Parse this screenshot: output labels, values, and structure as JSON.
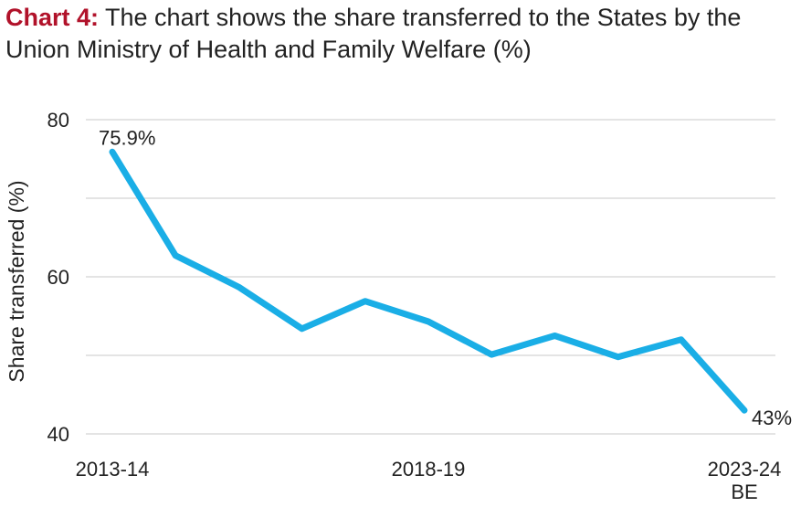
{
  "title": {
    "lead": "Chart 4:",
    "text": "The chart shows the share transferred to the States by the Union Ministry of Health and Family Welfare (%)"
  },
  "colors": {
    "line": "#1aaee6",
    "grid": "#c8c8c8",
    "lead": "#b1122a"
  },
  "chart_data": {
    "type": "line",
    "title": "The chart shows the share transferred to the States by the Union Ministry of Health and Family Welfare (%)",
    "ylabel": "Share transferred (%)",
    "xlabel": "",
    "ylim": [
      40,
      80
    ],
    "yticks": [
      40,
      60,
      80
    ],
    "grid": "horizontal",
    "x_tick_labels": [
      {
        "index": 0,
        "lines": [
          "2013-14"
        ]
      },
      {
        "index": 5,
        "lines": [
          "2018-19"
        ]
      },
      {
        "index": 10,
        "lines": [
          "2023-24",
          "BE"
        ]
      }
    ],
    "series": [
      {
        "values": [
          75.9,
          62.7,
          58.7,
          53.4,
          56.9,
          54.3,
          50.1,
          52.5,
          49.8,
          52.0,
          43.0
        ]
      }
    ],
    "data_labels": [
      {
        "index": 0,
        "text": "75.9%"
      },
      {
        "index": 10,
        "text": "43%"
      }
    ]
  }
}
